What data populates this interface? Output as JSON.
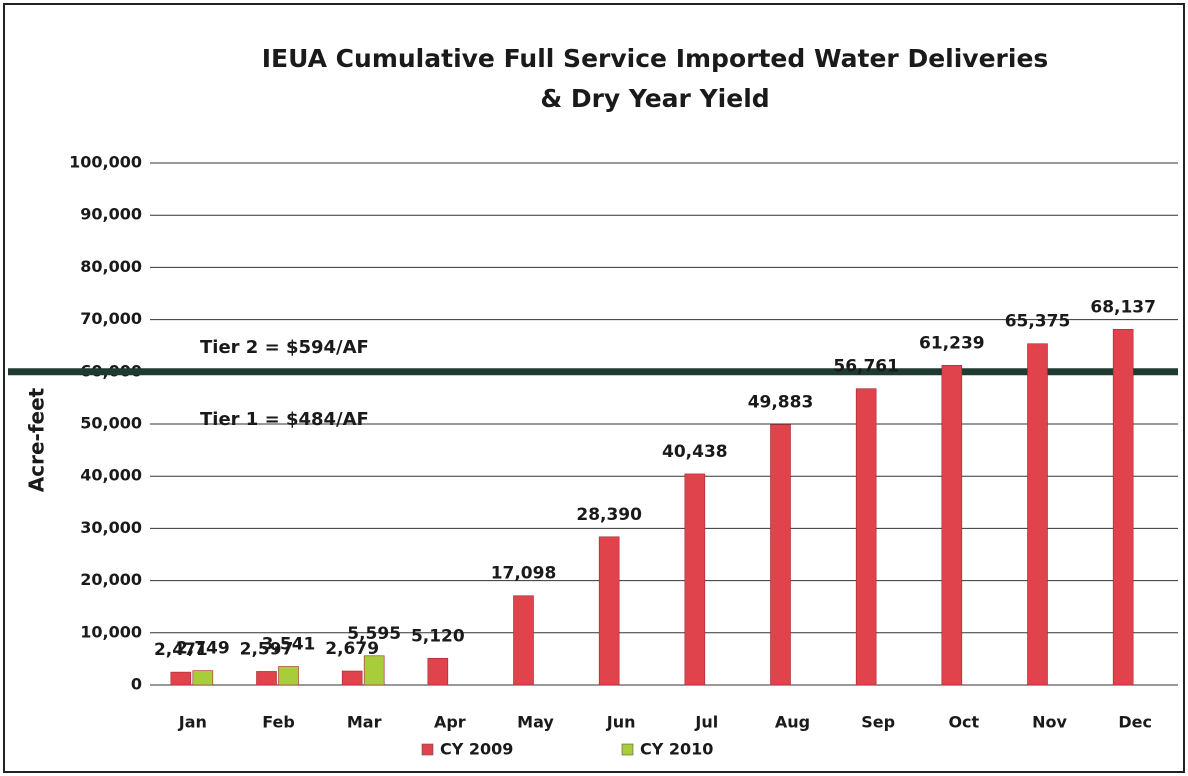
{
  "chart_data": {
    "type": "bar",
    "title": [
      "IEUA Cumulative Full Service Imported Water Deliveries",
      "& Dry Year Yield"
    ],
    "y_label": "Acre-feet",
    "categories": [
      "Jan",
      "Feb",
      "Mar",
      "Apr",
      "May",
      "Jun",
      "Jul",
      "Aug",
      "Sep",
      "Oct",
      "Nov",
      "Dec"
    ],
    "series": [
      {
        "name": "CY 2009",
        "color": "#e0434c",
        "values": [
          2471,
          2597,
          2679,
          5120,
          17098,
          28390,
          40438,
          49883,
          56761,
          61239,
          65375,
          68137
        ],
        "value_labels": [
          "2,471",
          "2,597",
          "2,679",
          "5,120",
          "17,098",
          "28,390",
          "40,438",
          "49,883",
          "56,761",
          "61,239",
          "65,375",
          "68,137"
        ]
      },
      {
        "name": "CY 2010",
        "color": "#a8cc3a",
        "values": [
          2749,
          3541,
          5595,
          null,
          null,
          null,
          null,
          null,
          null,
          null,
          null,
          null
        ],
        "value_labels": [
          "2,749",
          "3,541",
          "5,595",
          null,
          null,
          null,
          null,
          null,
          null,
          null,
          null,
          null
        ]
      }
    ],
    "ylim": [
      0,
      100000
    ],
    "yticks": [
      0,
      {
        "value": 10000,
        "label": "10,000"
      },
      {
        "value": 20000,
        "label": "20,000"
      },
      {
        "value": 30000,
        "label": "30,000"
      },
      {
        "value": 40000,
        "label": "40,000"
      },
      {
        "value": 50000,
        "label": "50,000"
      },
      {
        "value": 60000,
        "label": "60,000"
      },
      {
        "value": 70000,
        "label": "70,000"
      },
      {
        "value": 80000,
        "label": "80,000"
      },
      {
        "value": 90000,
        "label": "90,000"
      },
      {
        "value": 100000,
        "label": "100,000"
      }
    ],
    "grid": true,
    "reference_line": {
      "value": 60000,
      "color": "#1f3a30"
    },
    "annotations": [
      "Tier 2 = $594/AF",
      "Tier 1 = $484/AF"
    ],
    "legend": "bottom"
  }
}
